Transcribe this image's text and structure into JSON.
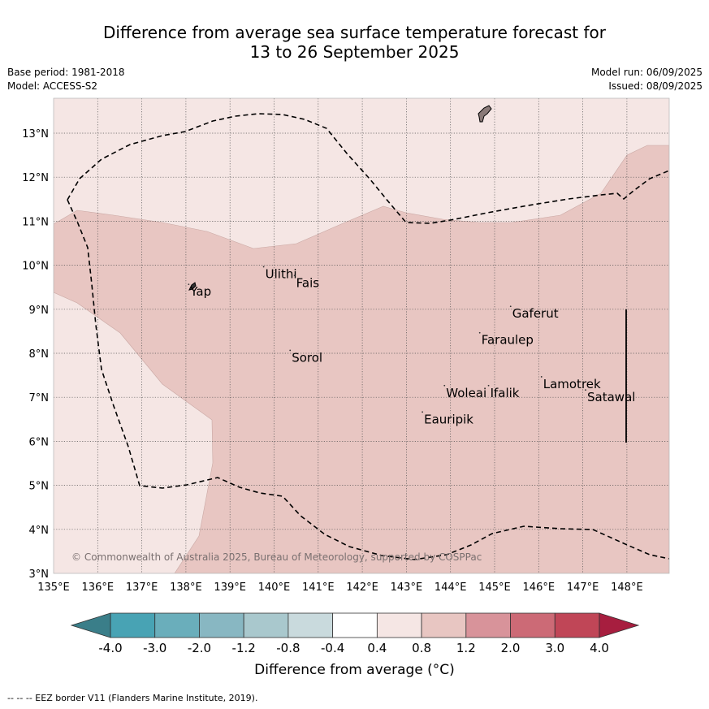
{
  "title": {
    "line1": "Difference from average sea surface temperature forecast for",
    "line2": "13 to 26 September 2025"
  },
  "meta_left": {
    "base_period": "Base period: 1981-2018",
    "model": "Model: ACCESS-S2"
  },
  "meta_right": {
    "model_run": "Model run: 06/09/2025",
    "issued": "Issued: 08/09/2025"
  },
  "map": {
    "lon_labels": [
      "135°E",
      "136°E",
      "137°E",
      "138°E",
      "139°E",
      "140°E",
      "141°E",
      "142°E",
      "143°E",
      "144°E",
      "145°E",
      "146°E",
      "147°E",
      "148°E"
    ],
    "lat_labels": [
      "3°N",
      "4°N",
      "5°N",
      "6°N",
      "7°N",
      "8°N",
      "9°N",
      "10°N",
      "11°N",
      "12°N",
      "13°N"
    ],
    "places": [
      {
        "name": "Ulithi",
        "lon": 139.8,
        "lat": 9.8
      },
      {
        "name": "Fais",
        "lon": 140.5,
        "lat": 9.6
      },
      {
        "name": "Yap",
        "lon": 138.1,
        "lat": 9.4
      },
      {
        "name": "Gaferut",
        "lon": 145.4,
        "lat": 8.9
      },
      {
        "name": "Faraulep",
        "lon": 144.7,
        "lat": 8.3
      },
      {
        "name": "Sorol",
        "lon": 140.4,
        "lat": 7.9
      },
      {
        "name": "Woleai",
        "lon": 143.9,
        "lat": 7.1
      },
      {
        "name": "Ifalik",
        "lon": 144.9,
        "lat": 7.1
      },
      {
        "name": "Lamotrek",
        "lon": 146.1,
        "lat": 7.3
      },
      {
        "name": "Satawal",
        "lon": 147.1,
        "lat": 7.0
      },
      {
        "name": "Eauripik",
        "lon": 143.4,
        "lat": 6.5
      }
    ],
    "copyright": "© Commonwealth of Australia 2025, Bureau of Meteorology, supported by COSPPac"
  },
  "colorbar": {
    "ticks": [
      "-4.0",
      "-3.0",
      "-2.0",
      "-1.2",
      "-0.8",
      "-0.4",
      "0.4",
      "0.8",
      "1.2",
      "2.0",
      "3.0",
      "4.0"
    ],
    "colors": [
      "#48a3b4",
      "#6aaebb",
      "#88b7c2",
      "#a9c8cd",
      "#c9dadd",
      "#ffffff",
      "#f5e6e4",
      "#e8c6c2",
      "#d8939a",
      "#cc6a76",
      "#c04657"
    ],
    "under_color": "#3a7e89",
    "over_color": "#a71e3f",
    "label": "Difference from average (°C)"
  },
  "footnote": "--  --  -- EEZ border V11 (Flanders Marine Institute, 2019)."
}
